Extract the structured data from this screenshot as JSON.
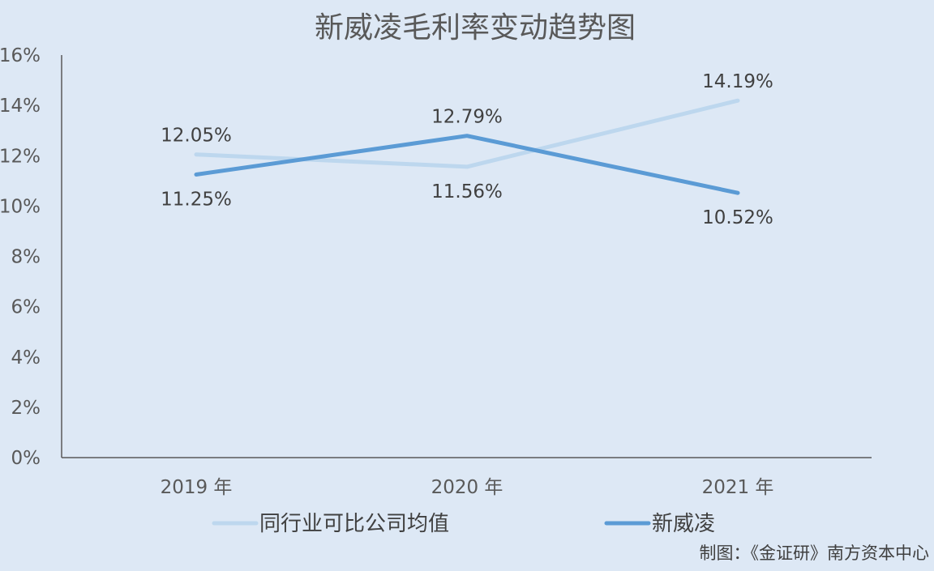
{
  "chart_data": {
    "type": "line",
    "title": "新威凌毛利率变动趋势图",
    "categories": [
      "2019 年",
      "2020 年",
      "2021 年"
    ],
    "y_ticks": [
      "0%",
      "2%",
      "4%",
      "6%",
      "8%",
      "10%",
      "12%",
      "14%",
      "16%"
    ],
    "ylim": [
      0,
      16
    ],
    "unit": "%",
    "grid": false,
    "legend_position": "bottom",
    "series": [
      {
        "name": "同行业可比公司均值",
        "color": "#bdd7ee",
        "values": [
          12.05,
          11.56,
          14.19
        ],
        "labels": [
          "12.05%",
          "11.56%",
          "14.19%"
        ]
      },
      {
        "name": "新威凌",
        "color": "#5b9bd5",
        "values": [
          11.25,
          12.79,
          10.52
        ],
        "labels": [
          "11.25%",
          "12.79%",
          "10.52%"
        ]
      }
    ]
  },
  "credit": "制图：《金证研》南方资本中心"
}
